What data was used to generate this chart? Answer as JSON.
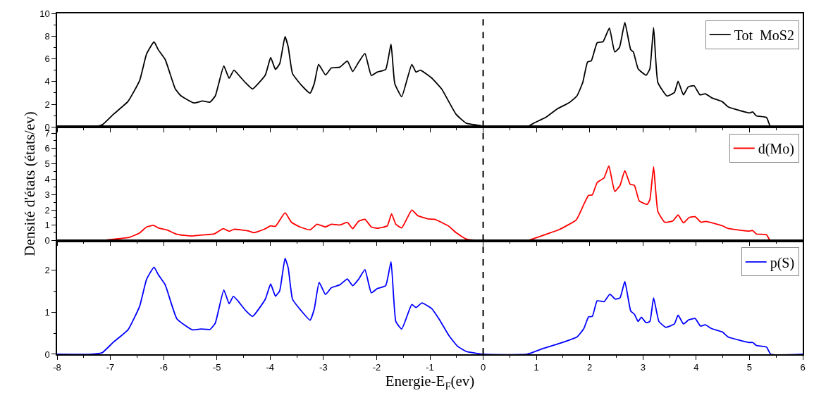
{
  "chart_data": [
    {
      "type": "line",
      "xlim": [
        -8,
        6
      ],
      "xticks": [
        -8,
        -7,
        -6,
        -5,
        -4,
        -3,
        -2,
        -1,
        0,
        1,
        2,
        3,
        4,
        5,
        6
      ],
      "ylim": [
        0,
        10
      ],
      "yticks": [
        0,
        2,
        4,
        6,
        8,
        10
      ],
      "tick_labels": "y",
      "legend": "top right",
      "ref_lines": [
        {
          "axis": "x",
          "value": 0,
          "color": "#000000",
          "line_style": "dashed"
        }
      ],
      "series": [
        {
          "name": "Tot  MoS2",
          "color": "#000000",
          "x": [
            -8,
            -7.31,
            -7.15,
            -6.94,
            -6.67,
            -6.45,
            -6.32,
            -6.18,
            -6.1,
            -5.97,
            -5.78,
            -5.67,
            -5.43,
            -5.27,
            -5.13,
            -5.03,
            -4.87,
            -4.77,
            -4.68,
            -4.57,
            -4.46,
            -4.33,
            -4.09,
            -3.99,
            -3.9,
            -3.82,
            -3.72,
            -3.66,
            -3.58,
            -3.42,
            -3.25,
            -3.17,
            -3.09,
            -2.96,
            -2.85,
            -2.69,
            -2.55,
            -2.45,
            -2.34,
            -2.22,
            -2.1,
            -1.99,
            -1.83,
            -1.73,
            -1.66,
            -1.53,
            -1.34,
            -1.26,
            -1.18,
            -0.97,
            -0.78,
            -0.51,
            -0.32,
            -0.03,
            0,
            0.82,
            0.95,
            1.17,
            1.39,
            1.61,
            1.76,
            1.87,
            1.96,
            2.03,
            2.14,
            2.25,
            2.37,
            2.47,
            2.56,
            2.66,
            2.77,
            2.82,
            2.91,
            3.06,
            3.13,
            3.2,
            3.28,
            3.45,
            3.59,
            3.66,
            3.76,
            3.85,
            3.96,
            4.07,
            4.17,
            4.29,
            4.49,
            4.6,
            5.0,
            5.06,
            5.13,
            5.32,
            5.4,
            6
          ],
          "values": [
            0,
            0,
            0.2,
            1.13,
            2.24,
            4.09,
            6.43,
            7.49,
            6.8,
            5.94,
            3.35,
            2.73,
            2.12,
            2.29,
            2.19,
            2.73,
            5.37,
            4.29,
            5.0,
            4.46,
            3.89,
            3.35,
            4.58,
            6.11,
            5.07,
            5.57,
            7.96,
            7.04,
            4.7,
            3.72,
            2.98,
            3.84,
            5.52,
            4.58,
            5.2,
            5.27,
            5.81,
            4.88,
            5.69,
            6.48,
            4.53,
            4.83,
            5.07,
            7.29,
            3.84,
            2.66,
            5.52,
            4.83,
            5.0,
            4.33,
            3.35,
            1.13,
            0.34,
            0.1,
            0,
            0,
            0.34,
            0.84,
            1.59,
            2.13,
            2.73,
            3.92,
            5.72,
            5.82,
            7.41,
            7.51,
            8.71,
            6.61,
            7.01,
            9.2,
            6.81,
            6.61,
            5.12,
            4.56,
            5.12,
            8.75,
            3.92,
            2.73,
            3.03,
            4.02,
            2.83,
            3.53,
            3.63,
            2.83,
            2.93,
            2.57,
            2.23,
            1.77,
            1.24,
            1.33,
            0.98,
            0.84,
            0,
            0
          ]
        }
      ]
    },
    {
      "type": "line",
      "xlim": [
        -8,
        6
      ],
      "xticks": [
        -8,
        -7,
        -6,
        -5,
        -4,
        -3,
        -2,
        -1,
        0,
        1,
        2,
        3,
        4,
        5,
        6
      ],
      "ylim": [
        0,
        7.4
      ],
      "yticks": [
        0,
        1,
        2,
        3,
        4,
        5,
        6,
        7
      ],
      "tick_labels": "y",
      "legend": "top right",
      "ylabel": "Densité d'états (états/ev)",
      "ref_lines": [
        {
          "axis": "x",
          "value": 0,
          "color": "#000000",
          "line_style": "dashed"
        }
      ],
      "series": [
        {
          "name": "d(Mo)",
          "color": "#ff0000",
          "x": [
            -8,
            -7.2,
            -6.94,
            -6.64,
            -6.45,
            -6.32,
            -6.19,
            -6.1,
            -5.94,
            -5.75,
            -5.46,
            -5.27,
            -5.05,
            -4.88,
            -4.77,
            -4.68,
            -4.41,
            -4.3,
            -4.11,
            -3.99,
            -3.9,
            -3.72,
            -3.6,
            -3.44,
            -3.25,
            -3.12,
            -2.96,
            -2.85,
            -2.69,
            -2.55,
            -2.45,
            -2.34,
            -2.22,
            -2.1,
            -1.99,
            -1.8,
            -1.72,
            -1.64,
            -1.53,
            -1.34,
            -1.23,
            -1.02,
            -0.91,
            -0.64,
            -0.51,
            -0.32,
            0,
            0.82,
            1.13,
            1.44,
            1.75,
            1.89,
            1.98,
            2.05,
            2.14,
            2.27,
            2.36,
            2.47,
            2.57,
            2.66,
            2.76,
            2.84,
            2.93,
            3.08,
            3.13,
            3.2,
            3.28,
            3.41,
            3.56,
            3.66,
            3.76,
            3.87,
            3.98,
            4.09,
            4.18,
            4.49,
            4.6,
            5.0,
            5.06,
            5.13,
            5.32,
            5.39,
            6
          ],
          "values": [
            0,
            0,
            0.09,
            0.22,
            0.5,
            0.89,
            1.0,
            0.83,
            0.7,
            0.41,
            0.3,
            0.37,
            0.44,
            0.78,
            0.61,
            0.74,
            0.63,
            0.52,
            0.74,
            0.96,
            0.93,
            1.81,
            1.2,
            0.89,
            0.7,
            1.07,
            0.89,
            1.07,
            1.02,
            1.19,
            0.78,
            1.26,
            1.39,
            0.89,
            0.81,
            0.96,
            1.74,
            1.07,
            0.83,
            2.0,
            1.63,
            1.41,
            1.39,
            0.93,
            0.52,
            0.11,
            0,
            0,
            0.35,
            0.74,
            1.36,
            2.36,
            2.95,
            2.98,
            3.78,
            4.09,
            4.86,
            3.21,
            3.6,
            4.57,
            3.67,
            3.6,
            2.59,
            2.36,
            2.67,
            4.8,
            1.9,
            1.2,
            1.28,
            1.67,
            1.16,
            1.51,
            1.56,
            1.2,
            1.25,
            0.97,
            0.79,
            0.62,
            0.66,
            0.43,
            0.39,
            0,
            0
          ]
        }
      ]
    },
    {
      "type": "line",
      "xlim": [
        -8,
        6
      ],
      "xticks": [
        -8,
        -7,
        -6,
        -5,
        -4,
        -3,
        -2,
        -1,
        0,
        1,
        2,
        3,
        4,
        5,
        6
      ],
      "ylim": [
        0,
        2.7
      ],
      "yticks": [
        0,
        1,
        2
      ],
      "legend": "top right",
      "xlabel": "Energie-E$_{F}$(ev)",
      "ref_lines": [
        {
          "axis": "x",
          "value": 0,
          "color": "#000000",
          "line_style": "dashed"
        }
      ],
      "series": [
        {
          "name": "p(S)",
          "color": "#0000ff",
          "x": [
            -8,
            -7.35,
            -7.15,
            -6.94,
            -6.67,
            -6.45,
            -6.32,
            -6.18,
            -6.1,
            -5.97,
            -5.75,
            -5.46,
            -5.3,
            -5.13,
            -5.03,
            -4.87,
            -4.77,
            -4.69,
            -4.6,
            -4.46,
            -4.33,
            -4.09,
            -3.99,
            -3.9,
            -3.82,
            -3.72,
            -3.66,
            -3.58,
            -3.42,
            -3.25,
            -3.17,
            -3.08,
            -2.96,
            -2.85,
            -2.69,
            -2.55,
            -2.45,
            -2.34,
            -2.22,
            -2.1,
            -1.99,
            -1.83,
            -1.73,
            -1.64,
            -1.53,
            -1.34,
            -1.26,
            -1.15,
            -0.97,
            -0.83,
            -0.64,
            -0.48,
            -0.32,
            0,
            0.82,
            1.13,
            1.39,
            1.76,
            1.89,
            1.98,
            2.05,
            2.14,
            2.27,
            2.38,
            2.48,
            2.57,
            2.66,
            2.77,
            2.84,
            2.91,
            2.97,
            3.06,
            3.13,
            3.2,
            3.3,
            3.43,
            3.59,
            3.66,
            3.76,
            3.86,
            3.98,
            4.08,
            4.17,
            4.29,
            4.49,
            4.6,
            5.0,
            5.06,
            5.13,
            5.32,
            5.4,
            6
          ],
          "values": [
            0,
            0,
            0.04,
            0.29,
            0.58,
            1.14,
            1.78,
            2.07,
            1.89,
            1.65,
            0.84,
            0.58,
            0.6,
            0.59,
            0.74,
            1.53,
            1.2,
            1.38,
            1.26,
            1.04,
            0.9,
            1.31,
            1.67,
            1.38,
            1.51,
            2.28,
            2.05,
            1.31,
            1.04,
            0.81,
            1.08,
            1.71,
            1.42,
            1.58,
            1.65,
            1.79,
            1.63,
            1.78,
            2.01,
            1.46,
            1.56,
            1.63,
            2.2,
            0.78,
            0.6,
            1.18,
            1.11,
            1.22,
            1.09,
            0.84,
            0.44,
            0.19,
            0.07,
            0,
            0,
            0.14,
            0.24,
            0.41,
            0.61,
            0.89,
            0.9,
            1.27,
            1.25,
            1.43,
            1.31,
            1.34,
            1.73,
            1.03,
            0.95,
            0.78,
            0.88,
            0.75,
            0.78,
            1.34,
            0.78,
            0.64,
            0.72,
            0.93,
            0.72,
            0.82,
            0.85,
            0.67,
            0.7,
            0.61,
            0.53,
            0.41,
            0.28,
            0.28,
            0.21,
            0.17,
            0,
            0
          ]
        }
      ]
    }
  ]
}
